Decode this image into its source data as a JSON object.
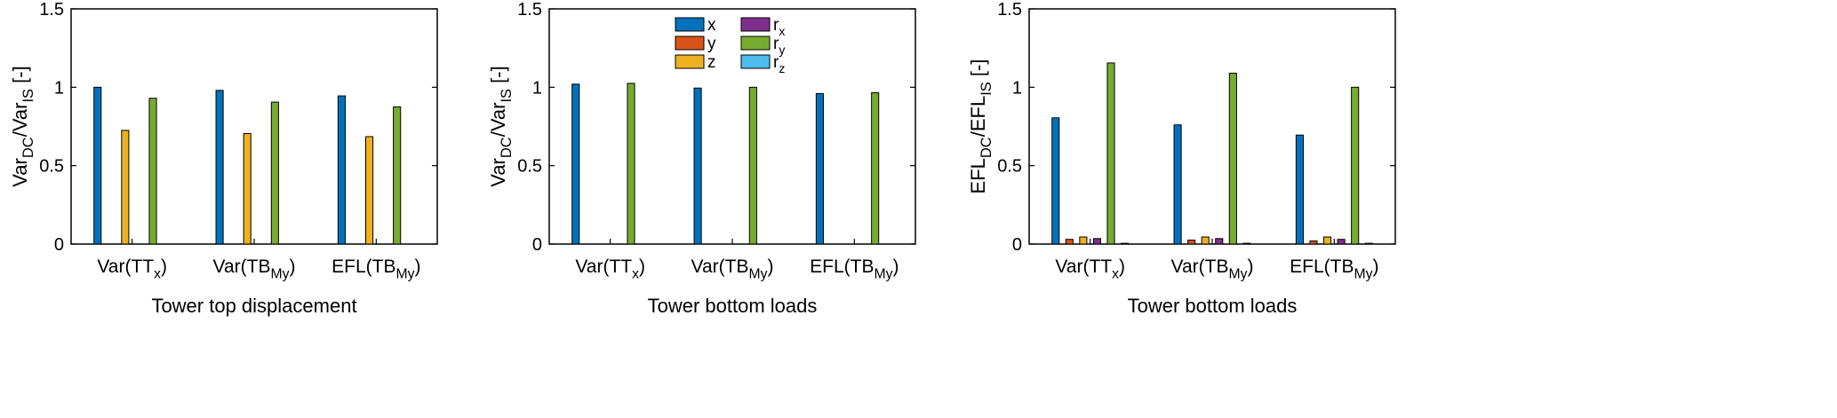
{
  "series_colors": {
    "x": "#0072BD",
    "y": "#D95319",
    "z": "#EDB120",
    "r_x": "#7E2F8E",
    "r_y": "#77AC30",
    "r_z": "#4DBEEE"
  },
  "legend": {
    "entries": [
      {
        "key": "x",
        "main": "x",
        "sub": ""
      },
      {
        "key": "y",
        "main": "y",
        "sub": ""
      },
      {
        "key": "z",
        "main": "z",
        "sub": ""
      },
      {
        "key": "r_x",
        "main": "r",
        "sub": "x"
      },
      {
        "key": "r_y",
        "main": "r",
        "sub": "y"
      },
      {
        "key": "r_z",
        "main": "r",
        "sub": "z"
      }
    ]
  },
  "chart_data": [
    {
      "type": "bar",
      "ylim": [
        0,
        1.5
      ],
      "yticks": [
        "0",
        "0.5",
        "1",
        "1.5"
      ],
      "ylabel": {
        "parts": [
          {
            "t": "Var"
          },
          {
            "t": "DC",
            "sub": true
          },
          {
            "t": "/Var"
          },
          {
            "t": "IS",
            "sub": true
          },
          {
            "t": " [-]"
          }
        ]
      },
      "xlabel": "Tower top displacement",
      "categories": [
        {
          "parts": [
            {
              "t": "Var(TT"
            },
            {
              "t": "x",
              "sub": true
            },
            {
              "t": ")"
            }
          ]
        },
        {
          "parts": [
            {
              "t": "Var(TB"
            },
            {
              "t": "My",
              "sub": true
            },
            {
              "t": ")"
            }
          ]
        },
        {
          "parts": [
            {
              "t": "EFL(TB"
            },
            {
              "t": "My",
              "sub": true
            },
            {
              "t": ")"
            }
          ]
        }
      ],
      "series": [
        {
          "key": "x",
          "values": [
            1.0,
            0.98,
            0.945
          ]
        },
        {
          "key": "y",
          "values": [
            0,
            0,
            0
          ]
        },
        {
          "key": "z",
          "values": [
            0.725,
            0.705,
            0.685
          ]
        },
        {
          "key": "r_x",
          "values": [
            0,
            0,
            0
          ]
        },
        {
          "key": "r_y",
          "values": [
            0.93,
            0.905,
            0.875
          ]
        },
        {
          "key": "r_z",
          "values": [
            0,
            0,
            0
          ]
        }
      ]
    },
    {
      "type": "bar",
      "ylim": [
        0,
        1.5
      ],
      "yticks": [
        "0",
        "0.5",
        "1",
        "1.5"
      ],
      "ylabel": {
        "parts": [
          {
            "t": "Var"
          },
          {
            "t": "DC",
            "sub": true
          },
          {
            "t": "/Var"
          },
          {
            "t": "IS",
            "sub": true
          },
          {
            "t": " [-]"
          }
        ]
      },
      "xlabel": "Tower bottom loads",
      "categories": [
        {
          "parts": [
            {
              "t": "Var(TT"
            },
            {
              "t": "x",
              "sub": true
            },
            {
              "t": ")"
            }
          ]
        },
        {
          "parts": [
            {
              "t": "Var(TB"
            },
            {
              "t": "My",
              "sub": true
            },
            {
              "t": ")"
            }
          ]
        },
        {
          "parts": [
            {
              "t": "EFL(TB"
            },
            {
              "t": "My",
              "sub": true
            },
            {
              "t": ")"
            }
          ]
        }
      ],
      "series": [
        {
          "key": "x",
          "values": [
            1.02,
            0.995,
            0.96
          ]
        },
        {
          "key": "y",
          "values": [
            0,
            0,
            0
          ]
        },
        {
          "key": "z",
          "values": [
            0,
            0,
            0
          ]
        },
        {
          "key": "r_x",
          "values": [
            0,
            0,
            0
          ]
        },
        {
          "key": "r_y",
          "values": [
            1.025,
            1.0,
            0.965
          ]
        },
        {
          "key": "r_z",
          "values": [
            0,
            0,
            0
          ]
        }
      ]
    },
    {
      "type": "bar",
      "ylim": [
        0,
        1.5
      ],
      "yticks": [
        "0",
        "0.5",
        "1",
        "1.5"
      ],
      "ylabel": {
        "parts": [
          {
            "t": "EFL"
          },
          {
            "t": "DC",
            "sub": true
          },
          {
            "t": "/EFL"
          },
          {
            "t": "IS",
            "sub": true
          },
          {
            "t": " [-]"
          }
        ]
      },
      "xlabel": "Tower bottom loads",
      "categories": [
        {
          "parts": [
            {
              "t": "Var(TT"
            },
            {
              "t": "x",
              "sub": true
            },
            {
              "t": ")"
            }
          ]
        },
        {
          "parts": [
            {
              "t": "Var(TB"
            },
            {
              "t": "My",
              "sub": true
            },
            {
              "t": ")"
            }
          ]
        },
        {
          "parts": [
            {
              "t": "EFL(TB"
            },
            {
              "t": "My",
              "sub": true
            },
            {
              "t": ")"
            }
          ]
        }
      ],
      "series": [
        {
          "key": "x",
          "values": [
            0.805,
            0.76,
            0.695
          ]
        },
        {
          "key": "y",
          "values": [
            0.03,
            0.025,
            0.02
          ]
        },
        {
          "key": "z",
          "values": [
            0.045,
            0.045,
            0.045
          ]
        },
        {
          "key": "r_x",
          "values": [
            0.035,
            0.035,
            0.03
          ]
        },
        {
          "key": "r_y",
          "values": [
            1.155,
            1.09,
            1.0
          ]
        },
        {
          "key": "r_z",
          "values": [
            0.005,
            0.005,
            0.005
          ]
        }
      ]
    }
  ]
}
